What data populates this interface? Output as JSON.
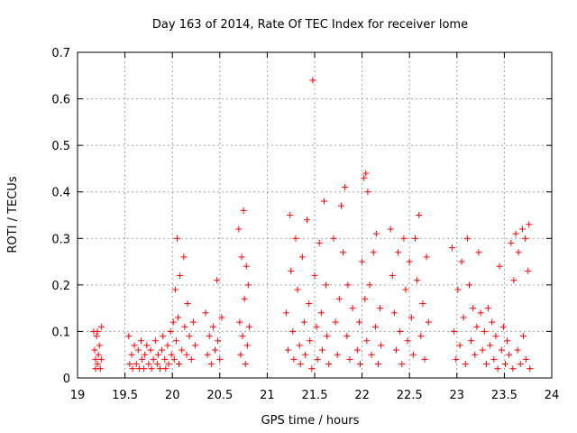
{
  "chart_data": {
    "type": "scatter",
    "title": "Day 163 of 2014, Rate Of TEC Index for receiver lome",
    "xlabel": "GPS time / hours",
    "ylabel": "ROTI / TECUs",
    "xlim": [
      19,
      24
    ],
    "ylim": [
      0,
      0.7
    ],
    "xticks": [
      "19",
      "19.5",
      "20",
      "20.5",
      "21",
      "21.5",
      "22",
      "22.5",
      "23",
      "23.5",
      "24"
    ],
    "yticks": [
      "0",
      "0.1",
      "0.2",
      "0.3",
      "0.4",
      "0.5",
      "0.6",
      "0.7"
    ],
    "grid": true,
    "marker": "+",
    "color": "#ff0000",
    "series": [
      {
        "name": "ROTI",
        "points": [
          [
            19.17,
            0.1
          ],
          [
            19.18,
            0.06
          ],
          [
            19.19,
            0.04
          ],
          [
            19.19,
            0.02
          ],
          [
            19.2,
            0.09
          ],
          [
            19.21,
            0.03
          ],
          [
            19.21,
            0.1
          ],
          [
            19.22,
            0.05
          ],
          [
            19.23,
            0.07
          ],
          [
            19.24,
            0.02
          ],
          [
            19.25,
            0.11
          ],
          [
            19.25,
            0.04
          ],
          [
            19.54,
            0.09
          ],
          [
            19.55,
            0.03
          ],
          [
            19.57,
            0.05
          ],
          [
            19.58,
            0.02
          ],
          [
            19.6,
            0.07
          ],
          [
            19.62,
            0.03
          ],
          [
            19.64,
            0.06
          ],
          [
            19.65,
            0.02
          ],
          [
            19.67,
            0.08
          ],
          [
            19.68,
            0.04
          ],
          [
            19.7,
            0.02
          ],
          [
            19.71,
            0.05
          ],
          [
            19.73,
            0.07
          ],
          [
            19.75,
            0.03
          ],
          [
            19.77,
            0.06
          ],
          [
            19.78,
            0.02
          ],
          [
            19.8,
            0.04
          ],
          [
            19.82,
            0.08
          ],
          [
            19.84,
            0.03
          ],
          [
            19.85,
            0.05
          ],
          [
            19.87,
            0.02
          ],
          [
            19.89,
            0.06
          ],
          [
            19.9,
            0.09
          ],
          [
            19.92,
            0.04
          ],
          [
            19.93,
            0.02
          ],
          [
            19.95,
            0.07
          ],
          [
            19.96,
            0.03
          ],
          [
            19.98,
            0.1
          ],
          [
            19.99,
            0.05
          ],
          [
            20.01,
            0.12
          ],
          [
            20.02,
            0.04
          ],
          [
            20.03,
            0.19
          ],
          [
            20.04,
            0.08
          ],
          [
            20.05,
            0.3
          ],
          [
            20.06,
            0.13
          ],
          [
            20.07,
            0.03
          ],
          [
            20.08,
            0.22
          ],
          [
            20.1,
            0.06
          ],
          [
            20.12,
            0.26
          ],
          [
            20.13,
            0.11
          ],
          [
            20.15,
            0.05
          ],
          [
            20.16,
            0.16
          ],
          [
            20.18,
            0.09
          ],
          [
            20.2,
            0.04
          ],
          [
            20.22,
            0.12
          ],
          [
            20.24,
            0.07
          ],
          [
            20.35,
            0.14
          ],
          [
            20.37,
            0.05
          ],
          [
            20.39,
            0.09
          ],
          [
            20.41,
            0.03
          ],
          [
            20.43,
            0.11
          ],
          [
            20.45,
            0.06
          ],
          [
            20.47,
            0.21
          ],
          [
            20.48,
            0.08
          ],
          [
            20.5,
            0.04
          ],
          [
            20.52,
            0.13
          ],
          [
            20.7,
            0.32
          ],
          [
            20.71,
            0.12
          ],
          [
            20.72,
            0.05
          ],
          [
            20.73,
            0.26
          ],
          [
            20.74,
            0.09
          ],
          [
            20.75,
            0.36
          ],
          [
            20.76,
            0.17
          ],
          [
            20.77,
            0.03
          ],
          [
            20.78,
            0.24
          ],
          [
            20.79,
            0.07
          ],
          [
            20.8,
            0.2
          ],
          [
            20.81,
            0.11
          ],
          [
            21.2,
            0.14
          ],
          [
            21.22,
            0.06
          ],
          [
            21.24,
            0.35
          ],
          [
            21.25,
            0.23
          ],
          [
            21.27,
            0.1
          ],
          [
            21.28,
            0.04
          ],
          [
            21.3,
            0.3
          ],
          [
            21.32,
            0.19
          ],
          [
            21.34,
            0.07
          ],
          [
            21.35,
            0.03
          ],
          [
            21.37,
            0.26
          ],
          [
            21.39,
            0.12
          ],
          [
            21.4,
            0.05
          ],
          [
            21.42,
            0.34
          ],
          [
            21.44,
            0.16
          ],
          [
            21.45,
            0.08
          ],
          [
            21.47,
            0.02
          ],
          [
            21.48,
            0.64
          ],
          [
            21.5,
            0.22
          ],
          [
            21.52,
            0.11
          ],
          [
            21.53,
            0.04
          ],
          [
            21.55,
            0.29
          ],
          [
            21.57,
            0.14
          ],
          [
            21.58,
            0.06
          ],
          [
            21.6,
            0.38
          ],
          [
            21.62,
            0.2
          ],
          [
            21.63,
            0.09
          ],
          [
            21.65,
            0.03
          ],
          [
            21.7,
            0.3
          ],
          [
            21.72,
            0.12
          ],
          [
            21.74,
            0.05
          ],
          [
            21.76,
            0.17
          ],
          [
            21.78,
            0.37
          ],
          [
            21.8,
            0.27
          ],
          [
            21.82,
            0.41
          ],
          [
            21.84,
            0.09
          ],
          [
            21.85,
            0.2
          ],
          [
            21.87,
            0.04
          ],
          [
            21.9,
            0.15
          ],
          [
            21.95,
            0.06
          ],
          [
            21.97,
            0.12
          ],
          [
            21.98,
            0.03
          ],
          [
            22.0,
            0.25
          ],
          [
            22.02,
            0.43
          ],
          [
            22.03,
            0.17
          ],
          [
            22.04,
            0.44
          ],
          [
            22.05,
            0.08
          ],
          [
            22.06,
            0.4
          ],
          [
            22.08,
            0.2
          ],
          [
            22.1,
            0.05
          ],
          [
            22.12,
            0.27
          ],
          [
            22.14,
            0.11
          ],
          [
            22.15,
            0.31
          ],
          [
            22.17,
            0.03
          ],
          [
            22.19,
            0.15
          ],
          [
            22.2,
            0.07
          ],
          [
            22.3,
            0.32
          ],
          [
            22.32,
            0.22
          ],
          [
            22.34,
            0.14
          ],
          [
            22.36,
            0.06
          ],
          [
            22.38,
            0.27
          ],
          [
            22.4,
            0.1
          ],
          [
            22.42,
            0.03
          ],
          [
            22.44,
            0.3
          ],
          [
            22.46,
            0.19
          ],
          [
            22.48,
            0.08
          ],
          [
            22.5,
            0.25
          ],
          [
            22.52,
            0.13
          ],
          [
            22.54,
            0.05
          ],
          [
            22.56,
            0.3
          ],
          [
            22.58,
            0.21
          ],
          [
            22.6,
            0.35
          ],
          [
            22.62,
            0.09
          ],
          [
            22.64,
            0.16
          ],
          [
            22.66,
            0.04
          ],
          [
            22.68,
            0.26
          ],
          [
            22.7,
            0.12
          ],
          [
            22.95,
            0.28
          ],
          [
            22.97,
            0.1
          ],
          [
            22.99,
            0.04
          ],
          [
            23.01,
            0.19
          ],
          [
            23.03,
            0.07
          ],
          [
            23.05,
            0.25
          ],
          [
            23.07,
            0.13
          ],
          [
            23.09,
            0.03
          ],
          [
            23.11,
            0.3
          ],
          [
            23.13,
            0.2
          ],
          [
            23.15,
            0.08
          ],
          [
            23.17,
            0.15
          ],
          [
            23.19,
            0.05
          ],
          [
            23.21,
            0.11
          ],
          [
            23.23,
            0.27
          ],
          [
            23.25,
            0.14
          ],
          [
            23.27,
            0.06
          ],
          [
            23.29,
            0.1
          ],
          [
            23.31,
            0.03
          ],
          [
            23.33,
            0.15
          ],
          [
            23.35,
            0.07
          ],
          [
            23.37,
            0.12
          ],
          [
            23.39,
            0.04
          ],
          [
            23.41,
            0.09
          ],
          [
            23.43,
            0.02
          ],
          [
            23.45,
            0.24
          ],
          [
            23.47,
            0.06
          ],
          [
            23.49,
            0.11
          ],
          [
            23.51,
            0.03
          ],
          [
            23.53,
            0.08
          ],
          [
            23.55,
            0.05
          ],
          [
            23.57,
            0.29
          ],
          [
            23.59,
            0.02
          ],
          [
            23.6,
            0.21
          ],
          [
            23.62,
            0.31
          ],
          [
            23.64,
            0.06
          ],
          [
            23.65,
            0.27
          ],
          [
            23.67,
            0.03
          ],
          [
            23.69,
            0.32
          ],
          [
            23.7,
            0.09
          ],
          [
            23.72,
            0.3
          ],
          [
            23.73,
            0.04
          ],
          [
            23.75,
            0.23
          ],
          [
            23.76,
            0.33
          ],
          [
            23.77,
            0.02
          ]
        ]
      }
    ]
  }
}
